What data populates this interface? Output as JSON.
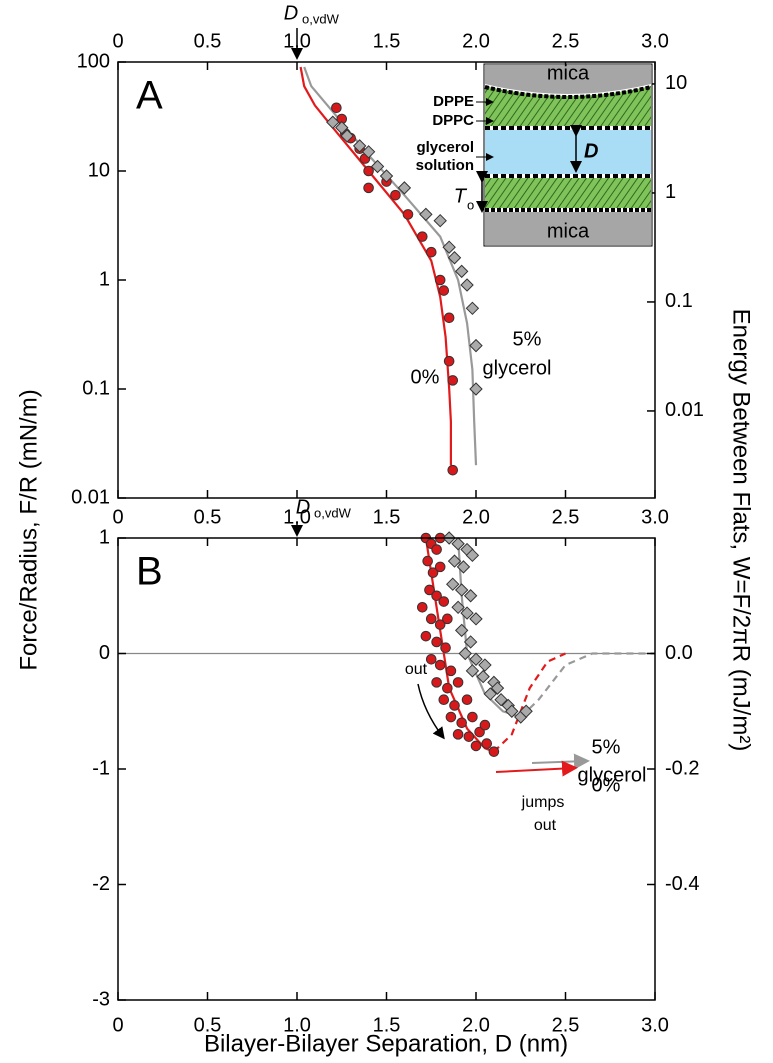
{
  "chart_data": [
    {
      "type": "scatter",
      "panel_label": "A",
      "y_label": "Force/Radius, F/R (mN/m)",
      "y2_label": "Energy Between Flats, W=F/2πR (mJ/m²)",
      "xlim": [
        0,
        3
      ],
      "xticks": [
        0,
        0.5,
        {
          "value": 1,
          "label": "1.0"
        },
        1.5,
        {
          "value": 2,
          "label": "2.0"
        },
        2.5,
        {
          "value": 3,
          "label": "3.0"
        }
      ],
      "ylog": true,
      "ylim": [
        0.01,
        100
      ],
      "yticks": [
        0.01,
        0.1,
        1,
        10,
        100
      ],
      "y2log": true,
      "y2lim": [
        0.00159,
        15.9
      ],
      "y2ticks": [
        0.01,
        0.1,
        1,
        10
      ],
      "series": [
        {
          "name": "0%",
          "color": "#d7191c",
          "marker": "circle",
          "x": [
            1.22,
            1.25,
            1.27,
            1.3,
            1.35,
            1.38,
            1.4,
            1.4,
            1.5,
            1.55,
            1.62,
            1.7,
            1.75,
            1.8,
            1.82,
            1.85,
            1.85,
            1.87,
            1.87
          ],
          "values": [
            38,
            30,
            22,
            20,
            16,
            13,
            10,
            7,
            8,
            6,
            4,
            2.5,
            1.8,
            1.0,
            0.8,
            0.45,
            0.18,
            0.12,
            0.018
          ]
        },
        {
          "name": "5%",
          "color": "#aaaaaa",
          "marker": "diamond",
          "x": [
            1.2,
            1.25,
            1.28,
            1.35,
            1.4,
            1.45,
            1.5,
            1.6,
            1.72,
            1.8,
            1.85,
            1.88,
            1.92,
            1.95,
            1.98,
            2.0,
            2.0
          ],
          "values": [
            28,
            25,
            21,
            17,
            15,
            11,
            9,
            7,
            4,
            3.5,
            2,
            1.6,
            1.2,
            0.9,
            0.55,
            0.25,
            0.1
          ]
        }
      ],
      "curves": [
        {
          "color": "#e31a1c",
          "style": "solid",
          "x": [
            1.02,
            1.04,
            1.1,
            1.2,
            1.4,
            1.6,
            1.75,
            1.8,
            1.83,
            1.85,
            1.86,
            1.86
          ],
          "values": [
            90,
            60,
            40,
            25,
            10,
            4,
            1.5,
            0.7,
            0.3,
            0.1,
            0.05,
            0.02
          ]
        },
        {
          "color": "#999999",
          "style": "solid",
          "x": [
            1.04,
            1.08,
            1.2,
            1.4,
            1.6,
            1.8,
            1.9,
            1.95,
            1.98,
            1.99,
            2.0
          ],
          "values": [
            90,
            60,
            35,
            14,
            6,
            2.5,
            1,
            0.4,
            0.15,
            0.05,
            0.02
          ]
        }
      ],
      "annotations": [
        {
          "text": "0%",
          "color": "#e31a1c"
        },
        {
          "text": "5%",
          "color": "#999999"
        },
        {
          "text": "glycerol",
          "color": "#999999"
        }
      ]
    },
    {
      "type": "scatter",
      "panel_label": "B",
      "x_label": "Bilayer-Bilayer Separation, D (nm)",
      "xlim": [
        0,
        3
      ],
      "xticks": [
        0,
        0.5,
        {
          "value": 1,
          "label": "1.0"
        },
        1.5,
        {
          "value": 2,
          "label": "2.0"
        },
        2.5,
        {
          "value": 3,
          "label": "3.0"
        }
      ],
      "ylim": [
        -3,
        1
      ],
      "yticks": [
        -3,
        -2,
        -1,
        0,
        1
      ],
      "y2lim": [
        -0.6,
        0.2
      ],
      "y2ticks": [
        -0.4,
        -0.2,
        {
          "value": 0,
          "label": "0.0"
        }
      ],
      "series": [
        {
          "name": "0%",
          "color": "#d7191c",
          "marker": "circle",
          "x": [
            1.72,
            1.75,
            1.78,
            1.8,
            1.73,
            1.76,
            1.8,
            1.74,
            1.78,
            1.82,
            1.7,
            1.75,
            1.8,
            1.84,
            1.72,
            1.78,
            1.83,
            1.75,
            1.8,
            1.86,
            1.78,
            1.84,
            1.9,
            1.82,
            1.88,
            1.95,
            1.86,
            1.92,
            1.98,
            1.9,
            1.96,
            2.02,
            2.0,
            2.06,
            2.1,
            2.05
          ],
          "values": [
            1.0,
            0.95,
            0.9,
            1.0,
            0.8,
            0.7,
            0.75,
            0.55,
            0.5,
            0.45,
            0.4,
            0.3,
            0.25,
            0.3,
            0.15,
            0.1,
            0.05,
            -0.05,
            -0.1,
            -0.15,
            -0.25,
            -0.3,
            -0.25,
            -0.4,
            -0.45,
            -0.4,
            -0.55,
            -0.6,
            -0.55,
            -0.7,
            -0.72,
            -0.68,
            -0.8,
            -0.78,
            -0.85,
            -0.62
          ]
        },
        {
          "name": "5%",
          "color": "#aaaaaa",
          "marker": "diamond",
          "x": [
            1.85,
            1.9,
            1.95,
            1.88,
            1.93,
            1.98,
            1.87,
            1.92,
            1.97,
            1.9,
            1.95,
            2.0,
            1.92,
            1.97,
            1.94,
            2.0,
            2.05,
            1.98,
            2.04,
            2.1,
            2.08,
            2.14,
            2.18,
            2.2,
            2.25,
            2.28,
            2.12
          ],
          "values": [
            1.0,
            0.95,
            0.9,
            0.8,
            0.75,
            0.85,
            0.6,
            0.55,
            0.5,
            0.4,
            0.35,
            0.3,
            0.2,
            0.1,
            0,
            -0.05,
            -0.1,
            -0.15,
            -0.2,
            -0.25,
            -0.35,
            -0.4,
            -0.45,
            -0.5,
            -0.55,
            -0.5,
            -0.3
          ]
        }
      ],
      "curves": [
        {
          "color": "#e31a1c",
          "style": "solid",
          "x": [
            1.72,
            1.76,
            1.8,
            1.85,
            1.95,
            2.05,
            2.1
          ],
          "values": [
            1.0,
            0.6,
            0.2,
            -0.3,
            -0.65,
            -0.82,
            -0.85
          ]
        },
        {
          "color": "#e31a1c",
          "style": "dashed",
          "x": [
            2.1,
            2.2,
            2.3,
            2.4,
            2.5
          ],
          "values": [
            -0.85,
            -0.7,
            -0.3,
            -0.07,
            0
          ]
        },
        {
          "color": "#999999",
          "style": "solid",
          "x": [
            1.9,
            1.92,
            1.95,
            2.05,
            2.15,
            2.25
          ],
          "values": [
            1.0,
            0.5,
            0,
            -0.35,
            -0.5,
            -0.55
          ]
        },
        {
          "color": "#999999",
          "style": "dashed",
          "x": [
            2.25,
            2.35,
            2.5,
            2.65,
            3.0
          ],
          "values": [
            -0.55,
            -0.4,
            -0.1,
            0,
            0
          ]
        }
      ],
      "annotations": [
        {
          "text": "out",
          "color": "#000000"
        },
        {
          "text": "jumps",
          "color": "#000000"
        },
        {
          "text": "out",
          "color": "#000000"
        },
        {
          "text": "5%",
          "color": "#999999"
        },
        {
          "text": "glycerol",
          "color": "#999999"
        },
        {
          "text": "0%",
          "color": "#e31a1c"
        }
      ]
    }
  ],
  "d_marker": {
    "text": "D",
    "sub": "o,vdW"
  },
  "inset": {
    "top": "mica",
    "bottom": "mica",
    "layers": [
      "DPPE",
      "DPPC"
    ],
    "solution": [
      "glycerol",
      "solution"
    ],
    "gap": "D",
    "thickness": "T",
    "thickness_sub": "o"
  }
}
